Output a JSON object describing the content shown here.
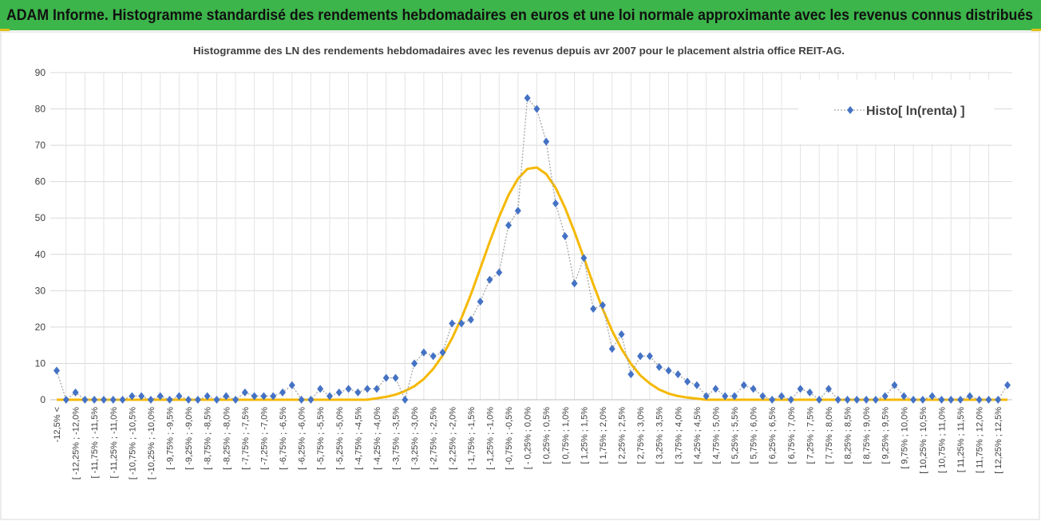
{
  "chart_data": {
    "type": "line",
    "title": "ADAM Informe. Histogramme standardisé des rendements hebdomadaires en euros et une loi normale approximante avec les revenus connus distribués",
    "subtitle": "Histogramme des LN des rendements hebdomadaires avec les revenus depuis avr 2007 pour le placement alstria office REIT-AG.",
    "categories": [
      "-12,5% <",
      null,
      "[ -12,25% ; -12,0%",
      null,
      "[ -11,75% ; -11,5%",
      null,
      "[ -11,25% ; -11,0%",
      null,
      "[ -10,75% ; -10,5%",
      null,
      "[ -10,25% ; -10,0%",
      null,
      "[ -9,75% ; -9,5%",
      null,
      "[ -9,25% ; -9,0%",
      null,
      "[ -8,75% ; -8,5%",
      null,
      "[ -8,25% ; -8,0%",
      null,
      "[ -7,75% ; -7,5%",
      null,
      "[ -7,25% ; -7,0%",
      null,
      "[ -6,75% ; -6,5%",
      null,
      "[ -6,25% ; -6,0%",
      null,
      "[ -5,75% ; -5,5%",
      null,
      "[ -5,25% ; -5,0%",
      null,
      "[ -4,75% ; -4,5%",
      null,
      "[ -4,25% ; -4,0%",
      null,
      "[ -3,75% ; -3,5%",
      null,
      "[ -3,25% ; -3,0%",
      null,
      "[ -2,75% ; -2,5%",
      null,
      "[ -2,25% ; -2,0%",
      null,
      "[ -1,75% ; -1,5%",
      null,
      "[ -1,25% ; -1,0%",
      null,
      "[ -0,75% ; -0,5%",
      null,
      "[ - 0,25% ; 0,0%",
      null,
      "[ 0,25% ; 0,5%",
      null,
      "[ 0,75% ; 1,0%",
      null,
      "[ 1,25% ; 1,5%",
      null,
      "[ 1,75% ; 2,0%",
      null,
      "[ 2,25% ; 2,5%",
      null,
      "[ 2,75% ; 3,0%",
      null,
      "[ 3,25% ; 3,5%",
      null,
      "[ 3,75% ; 4,0%",
      null,
      "[ 4,25% ; 4,5%",
      null,
      "[ 4,75% ; 5,0%",
      null,
      "[ 5,25% ; 5,5%",
      null,
      "[ 5,75% ; 6,0%",
      null,
      "[ 6,25% ; 6,5%",
      null,
      "[ 6,75% ; 7,0%",
      null,
      "[ 7,25% ; 7,5%",
      null,
      "[ 7,75% ; 8,0%",
      null,
      "[ 8,25% ; 8,5%",
      null,
      "[ 8,75% ; 9,0%",
      null,
      "[ 9,25% ; 9,5%",
      null,
      "[ 9,75% ; 10,0%",
      null,
      "[ 10,25% ; 10,5%",
      null,
      "[ 10,75% ; 11,0%",
      null,
      "[ 11,25% ; 11,5%",
      null,
      "[ 11,75% ; 12,0%",
      null,
      "[ 12,25% ; 12,5%",
      null
    ],
    "series": [
      {
        "name": "Histo[ ln(renta) ]",
        "color": "#4472c4",
        "values": [
          8,
          0,
          2,
          0,
          0,
          0,
          0,
          0,
          1,
          1,
          0,
          1,
          0,
          1,
          0,
          0,
          1,
          0,
          1,
          0,
          2,
          1,
          1,
          1,
          2,
          4,
          0,
          0,
          3,
          1,
          2,
          3,
          2,
          3,
          3,
          6,
          6,
          0,
          10,
          13,
          12,
          13,
          21,
          21,
          22,
          27,
          33,
          35,
          48,
          52,
          83,
          80,
          71,
          54,
          45,
          32,
          39,
          25,
          26,
          14,
          18,
          7,
          12,
          12,
          9,
          8,
          7,
          5,
          4,
          1,
          3,
          1,
          1,
          4,
          3,
          1,
          0,
          1,
          0,
          3,
          2,
          0,
          3,
          0,
          0,
          0,
          0,
          0,
          1,
          4,
          1,
          0,
          0,
          1,
          0,
          0,
          0,
          1,
          0,
          0,
          0,
          4
        ]
      },
      {
        "color": "#f5b800",
        "values": [
          0,
          0,
          0,
          0,
          0,
          0,
          0,
          0,
          0,
          0,
          0,
          0,
          0,
          0,
          0,
          0,
          0,
          0,
          0,
          0,
          0,
          0,
          0,
          0,
          0,
          0,
          0,
          0,
          0,
          0,
          0,
          0,
          0,
          0,
          0.4,
          0.8,
          1.4,
          2.4,
          3.7,
          5.7,
          8.5,
          12.2,
          16.9,
          22.5,
          29.0,
          36.1,
          43.4,
          50.3,
          56.3,
          60.8,
          63.5,
          63.9,
          62.1,
          58.3,
          52.8,
          46.2,
          39.0,
          31.8,
          25.0,
          19.0,
          14.0,
          9.9,
          6.7,
          4.5,
          2.8,
          1.7,
          1.0,
          0.6,
          0.3,
          0,
          0,
          0,
          0,
          0,
          0,
          0,
          0,
          0,
          0,
          0,
          0,
          0,
          0,
          0,
          0,
          0,
          0,
          0,
          0,
          0,
          0,
          0,
          0,
          0,
          0,
          0,
          0,
          0,
          0,
          0,
          0,
          0
        ]
      }
    ],
    "ylim": [
      0,
      90
    ],
    "yticks": [
      0,
      10,
      20,
      30,
      40,
      50,
      60,
      70,
      80,
      90
    ],
    "grid": true,
    "legend": "top-right"
  }
}
